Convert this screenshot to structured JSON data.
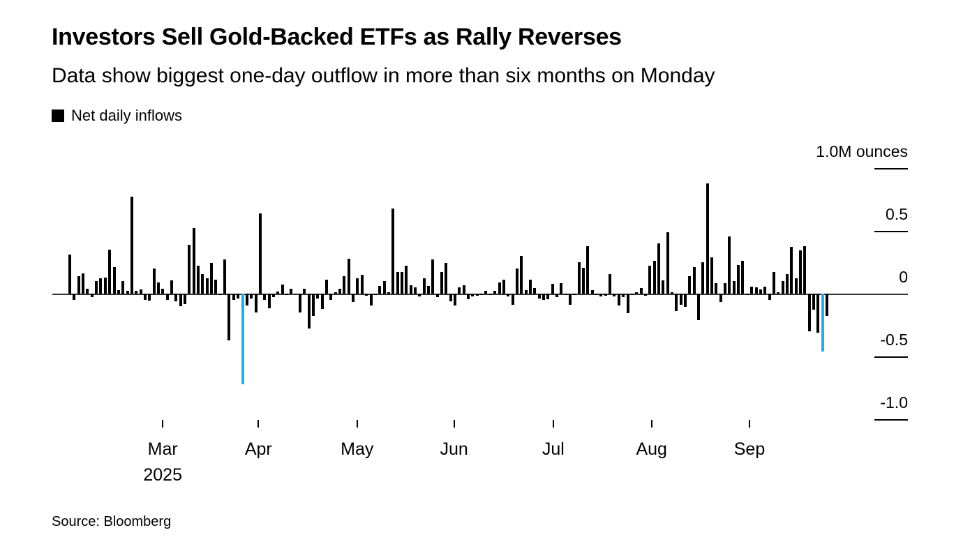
{
  "header": {
    "title": "Investors Sell Gold-Backed ETFs as Rally Reverses",
    "subtitle": "Data show biggest one-day outflow in more than six months on Monday"
  },
  "legend": {
    "label": "Net daily inflows",
    "swatch_color": "#000000"
  },
  "source": "Source: Bloomberg",
  "chart_data": {
    "type": "bar",
    "series_label": "Net daily inflows",
    "bar_color": "#000000",
    "highlight_color": "#1aaff2",
    "highlight_indices": [
      39,
      170
    ],
    "y_axis": {
      "range": [
        -1.0,
        1.0
      ],
      "ticks": [
        1.0,
        0.5,
        0,
        -0.5,
        -1.0
      ],
      "tick_labels": [
        "1.0M ounces",
        "0.5",
        "0",
        "-0.5",
        "-1.0"
      ],
      "grid": false,
      "position": "right"
    },
    "x_axis": {
      "tick_labels": [
        "Mar",
        "Apr",
        "May",
        "Jun",
        "Jul",
        "Aug",
        "Sep"
      ],
      "year_label": "2025",
      "tick_indices": [
        21,
        42.6,
        64.9,
        86.8,
        109.2,
        131.4,
        153.5
      ]
    },
    "values": [
      0.31,
      -0.05,
      0.14,
      0.16,
      0.04,
      -0.03,
      0.1,
      0.12,
      0.13,
      0.35,
      0.21,
      0.03,
      0.1,
      0.02,
      0.77,
      0.02,
      0.035,
      -0.05,
      -0.055,
      0.2,
      0.09,
      0.04,
      -0.05,
      0.105,
      -0.06,
      -0.1,
      -0.085,
      0.39,
      0.52,
      0.22,
      0.155,
      0.12,
      0.245,
      0.11,
      -0.01,
      0.27,
      -0.37,
      -0.05,
      -0.04,
      -0.72,
      -0.095,
      -0.04,
      -0.15,
      0.64,
      -0.05,
      -0.115,
      -0.03,
      0.015,
      0.075,
      -0.01,
      0.04,
      -0.005,
      -0.15,
      0.04,
      -0.28,
      -0.18,
      -0.04,
      -0.12,
      0.11,
      -0.05,
      0.01,
      0.04,
      0.14,
      0.28,
      -0.065,
      0.125,
      0.15,
      -0.015,
      -0.095,
      -0.01,
      0.06,
      0.1,
      0.01,
      0.68,
      0.17,
      0.17,
      0.22,
      0.065,
      0.05,
      -0.02,
      0.12,
      0.06,
      0.27,
      -0.03,
      0.17,
      0.245,
      -0.06,
      -0.095,
      0.05,
      0.065,
      -0.045,
      -0.02,
      -0.015,
      -0.01,
      0.02,
      -0.01,
      0.02,
      0.09,
      0.11,
      -0.02,
      -0.09,
      0.2,
      0.3,
      0.03,
      0.11,
      0.045,
      -0.04,
      -0.05,
      -0.045,
      0.08,
      -0.03,
      0.085,
      -0.01,
      -0.09,
      -0.01,
      0.25,
      0.205,
      0.38,
      0.03,
      -0.01,
      -0.02,
      -0.015,
      0.155,
      -0.02,
      -0.095,
      -0.025,
      -0.155,
      -0.01,
      0.01,
      0.045,
      -0.015,
      0.22,
      0.26,
      0.4,
      0.105,
      0.49,
      0.01,
      -0.14,
      -0.09,
      -0.105,
      0.14,
      0.21,
      -0.21,
      0.25,
      0.88,
      0.29,
      0.085,
      -0.065,
      0.085,
      0.455,
      0.1,
      0.23,
      0.26,
      -0.01,
      0.055,
      0.05,
      0.035,
      0.055,
      -0.05,
      0.17,
      0.01,
      0.1,
      0.155,
      0.37,
      0.12,
      0.345,
      0.38,
      -0.3,
      -0.13,
      -0.31,
      -0.46,
      -0.18
    ]
  }
}
